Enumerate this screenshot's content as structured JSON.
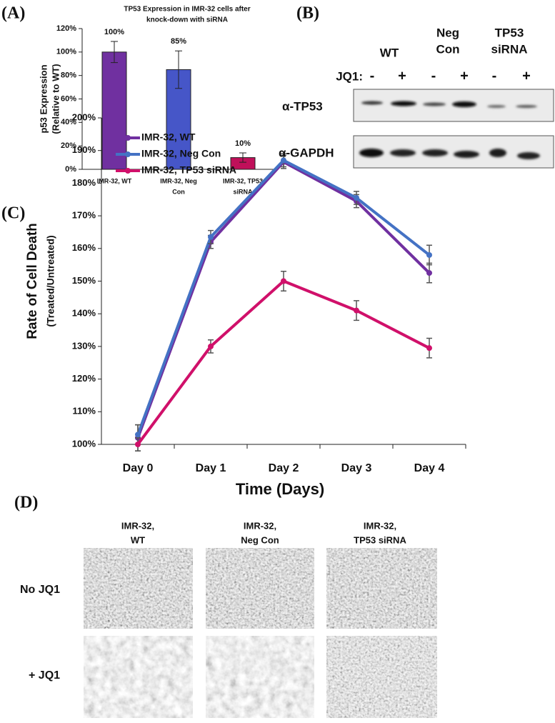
{
  "panel_labels": [
    "(A)",
    "(B)",
    "(C)",
    "(D)"
  ],
  "chart_data": [
    {
      "type": "bar",
      "title": [
        "TP53 Expression in IMR-32 cells after",
        "knock-down with siRNA"
      ],
      "ylabel": [
        "p53 Expression",
        "(Relative to WT)"
      ],
      "categories": [
        [
          "IMR-32, WT"
        ],
        [
          "IMR-32, Neg",
          "Con"
        ],
        [
          "IMR-32, TP53",
          "siRNA"
        ]
      ],
      "values": [
        100,
        85,
        10
      ],
      "value_labels": [
        "100%",
        "85%",
        "10%"
      ],
      "errors": [
        9,
        16,
        4
      ],
      "colors": [
        "#7030a0",
        "#4656c8",
        "#c0105a"
      ],
      "ylim": [
        0,
        120
      ],
      "yticks": [
        {
          "value": 0,
          "label": "0%"
        },
        {
          "value": 20,
          "label": "20%"
        },
        {
          "value": 40,
          "label": "40%"
        },
        {
          "value": 60,
          "label": "60%"
        },
        {
          "value": 80,
          "label": "80%"
        },
        {
          "value": 100,
          "label": "100%"
        },
        {
          "value": 120,
          "label": "120%"
        }
      ]
    },
    {
      "type": "line",
      "xlabel": "Time (Days)",
      "ylabel": [
        "Rate of Cell Death",
        "(Treated/Untreated)"
      ],
      "categories": [
        "Day 0",
        "Day 1",
        "Day 2",
        "Day 3",
        "Day 4"
      ],
      "series": [
        {
          "name": "IMR-32, WT",
          "color": "#7030a0",
          "values": [
            102,
            162,
            186.5,
            174.5,
            152.5
          ],
          "errors": [
            4,
            2,
            2,
            2,
            3
          ]
        },
        {
          "name": "IMR-32, Neg Con",
          "color": "#4472c4",
          "values": [
            103,
            163.5,
            187,
            175.5,
            158
          ],
          "errors": [
            3,
            2,
            2,
            2,
            3
          ]
        },
        {
          "name": "IMR-32, TP53 siRNA",
          "color": "#d0106a",
          "values": [
            100,
            130,
            150,
            141,
            129.5
          ],
          "errors": [
            2,
            2,
            3,
            3,
            3
          ]
        }
      ],
      "legend": "upper left",
      "ylim": [
        100,
        200
      ],
      "yticks": [
        {
          "value": 100,
          "label": "100%"
        },
        {
          "value": 110,
          "label": "110%"
        },
        {
          "value": 120,
          "label": "120%"
        },
        {
          "value": 130,
          "label": "130%"
        },
        {
          "value": 140,
          "label": "140%"
        },
        {
          "value": 150,
          "label": "150%"
        },
        {
          "value": 160,
          "label": "160%"
        },
        {
          "value": 170,
          "label": "170%"
        },
        {
          "value": 180,
          "label": "180%"
        },
        {
          "value": 190,
          "label": "190%"
        },
        {
          "value": 200,
          "label": "200%"
        }
      ]
    }
  ],
  "blot": {
    "groups": [
      [
        "WT"
      ],
      [
        "Neg",
        "Con"
      ],
      [
        "TP53",
        "siRNA"
      ]
    ],
    "jq1_label": "JQ1:",
    "treatments": [
      "-",
      "+",
      "-",
      "+",
      "-",
      "+"
    ],
    "antibodies": [
      "α-TP53",
      "α-GAPDH"
    ]
  },
  "micrographs": {
    "columns": [
      [
        "IMR-32,",
        "WT"
      ],
      [
        "IMR-32,",
        "Neg Con"
      ],
      [
        "IMR-32,",
        "TP53 siRNA"
      ]
    ],
    "rows": [
      "No JQ1",
      "+ JQ1"
    ]
  }
}
